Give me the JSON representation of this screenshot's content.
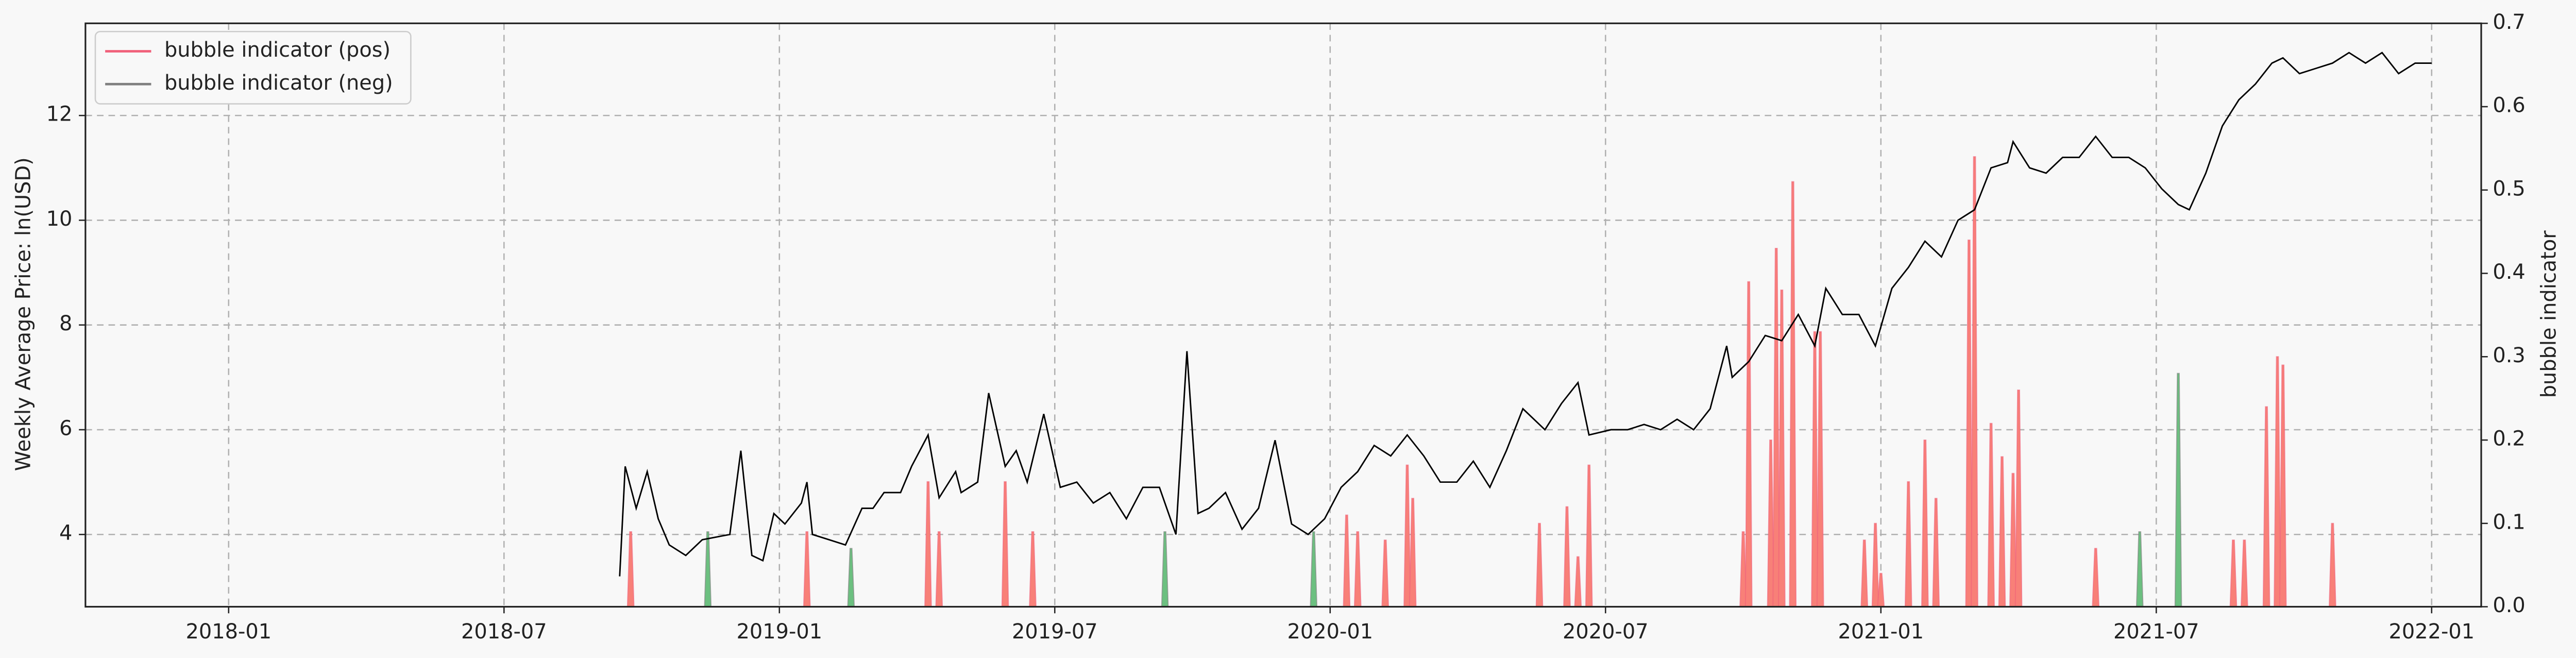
{
  "chart_data": {
    "type": "line",
    "y_label": "Weekly Average Price: ln(USD)",
    "y2_label": "bubble indicator",
    "xlim": [
      2017.74,
      2022.09
    ],
    "ylim": [
      2.62,
      13.76
    ],
    "y2lim": [
      0,
      0.7
    ],
    "grid": true,
    "legend": "upper left",
    "xticks": [
      {
        "value": 2018.0,
        "label": "2018-01"
      },
      {
        "value": 2018.5,
        "label": "2018-07"
      },
      {
        "value": 2019.0,
        "label": "2019-01"
      },
      {
        "value": 2019.5,
        "label": "2019-07"
      },
      {
        "value": 2020.0,
        "label": "2020-01"
      },
      {
        "value": 2020.5,
        "label": "2020-07"
      },
      {
        "value": 2021.0,
        "label": "2021-01"
      },
      {
        "value": 2021.5,
        "label": "2021-07"
      },
      {
        "value": 2022.0,
        "label": "2022-01"
      }
    ],
    "yticks": [
      4,
      6,
      8,
      10,
      12
    ],
    "y2ticks": [
      {
        "value": 0,
        "label": "0.0"
      },
      0.1,
      0.2,
      0.3,
      0.4,
      0.5,
      0.6,
      0.7
    ],
    "price": {
      "color": "#000000",
      "x": [
        2018.71,
        2018.72,
        2018.74,
        2018.76,
        2018.78,
        2018.8,
        2018.83,
        2018.86,
        2018.91,
        2018.93,
        2018.95,
        2018.97,
        2018.99,
        2019.01,
        2019.04,
        2019.05,
        2019.06,
        2019.09,
        2019.12,
        2019.15,
        2019.17,
        2019.19,
        2019.22,
        2019.24,
        2019.27,
        2019.29,
        2019.32,
        2019.33,
        2019.36,
        2019.38,
        2019.41,
        2019.43,
        2019.45,
        2019.48,
        2019.51,
        2019.54,
        2019.57,
        2019.6,
        2019.63,
        2019.66,
        2019.69,
        2019.72,
        2019.74,
        2019.76,
        2019.78,
        2019.81,
        2019.84,
        2019.87,
        2019.9,
        2019.93,
        2019.96,
        2019.99,
        2020.02,
        2020.05,
        2020.08,
        2020.11,
        2020.14,
        2020.17,
        2020.2,
        2020.23,
        2020.26,
        2020.29,
        2020.32,
        2020.35,
        2020.39,
        2020.42,
        2020.45,
        2020.47,
        2020.51,
        2020.54,
        2020.57,
        2020.6,
        2020.63,
        2020.66,
        2020.69,
        2020.72,
        2020.73,
        2020.76,
        2020.79,
        2020.82,
        2020.85,
        2020.88,
        2020.9,
        2020.93,
        2020.96,
        2020.99,
        2021.02,
        2021.05,
        2021.08,
        2021.11,
        2021.14,
        2021.17,
        2021.2,
        2021.23,
        2021.24,
        2021.27,
        2021.3,
        2021.33,
        2021.36,
        2021.39,
        2021.42,
        2021.45,
        2021.48,
        2021.51,
        2021.54,
        2021.56,
        2021.59,
        2021.62,
        2021.65,
        2021.68,
        2021.71,
        2021.73,
        2021.76,
        2021.79,
        2021.82,
        2021.85,
        2021.88,
        2021.91,
        2021.94,
        2021.97,
        2022.0
      ],
      "values": [
        3.2,
        5.3,
        4.5,
        5.2,
        4.3,
        3.8,
        3.6,
        3.9,
        4.0,
        5.6,
        3.6,
        3.5,
        4.4,
        4.2,
        4.6,
        5.0,
        4.0,
        3.9,
        3.8,
        4.5,
        4.5,
        4.8,
        4.8,
        5.3,
        5.9,
        4.7,
        5.2,
        4.8,
        5.0,
        6.7,
        5.3,
        5.6,
        5.0,
        6.3,
        4.9,
        5.0,
        4.6,
        4.8,
        4.3,
        4.9,
        4.9,
        4.0,
        7.5,
        4.4,
        4.5,
        4.8,
        4.1,
        4.5,
        5.8,
        4.2,
        4.0,
        4.3,
        4.9,
        5.2,
        5.7,
        5.5,
        5.9,
        5.5,
        5.0,
        5.0,
        5.4,
        4.9,
        5.6,
        6.4,
        6.0,
        6.5,
        6.9,
        5.9,
        6.0,
        6.0,
        6.1,
        6.0,
        6.2,
        6.0,
        6.4,
        7.6,
        7.0,
        7.3,
        7.8,
        7.7,
        8.2,
        7.6,
        8.7,
        8.2,
        8.2,
        7.6,
        8.7,
        9.1,
        9.6,
        9.3,
        10.0,
        10.2,
        11.0,
        11.1,
        11.5,
        11.0,
        10.9,
        11.2,
        11.2,
        11.6,
        11.2,
        11.2,
        11.0,
        10.6,
        10.3,
        10.2,
        10.9,
        11.8,
        12.3,
        12.6,
        13.0,
        13.1,
        12.8,
        12.9,
        13.0,
        13.2,
        13.0,
        13.2,
        12.8,
        13.0,
        13.0
      ]
    },
    "series": [
      {
        "name": "bubble indicator (pos)",
        "color": "#f0607a",
        "fill": "#f88078",
        "axis": "y2",
        "x": [
          2018.73,
          2019.05,
          2019.27,
          2019.29,
          2019.41,
          2019.46,
          2020.03,
          2020.05,
          2020.1,
          2020.14,
          2020.15,
          2020.38,
          2020.43,
          2020.45,
          2020.47,
          2020.75,
          2020.76,
          2020.8,
          2020.81,
          2020.82,
          2020.84,
          2020.88,
          2020.89,
          2020.97,
          2020.99,
          2021.0,
          2021.05,
          2021.08,
          2021.1,
          2021.16,
          2021.17,
          2021.2,
          2021.22,
          2021.24,
          2021.25,
          2021.39,
          2021.64,
          2021.66,
          2021.7,
          2021.72,
          2021.73,
          2021.82
        ],
        "values": [
          0.09,
          0.09,
          0.15,
          0.09,
          0.15,
          0.09,
          0.11,
          0.09,
          0.08,
          0.17,
          0.13,
          0.1,
          0.12,
          0.06,
          0.17,
          0.09,
          0.39,
          0.2,
          0.43,
          0.38,
          0.51,
          0.33,
          0.33,
          0.08,
          0.1,
          0.04,
          0.15,
          0.2,
          0.13,
          0.44,
          0.54,
          0.22,
          0.18,
          0.16,
          0.26,
          0.07,
          0.08,
          0.08,
          0.24,
          0.3,
          0.29,
          0.1
        ]
      },
      {
        "name": "bubble indicator (neg)",
        "color": "#808080",
        "fill": "#6cc080",
        "axis": "y2",
        "x": [
          2018.87,
          2019.13,
          2019.7,
          2019.97,
          2021.47,
          2021.54
        ],
        "values": [
          0.09,
          0.07,
          0.09,
          0.09,
          0.09,
          0.28
        ]
      }
    ]
  }
}
